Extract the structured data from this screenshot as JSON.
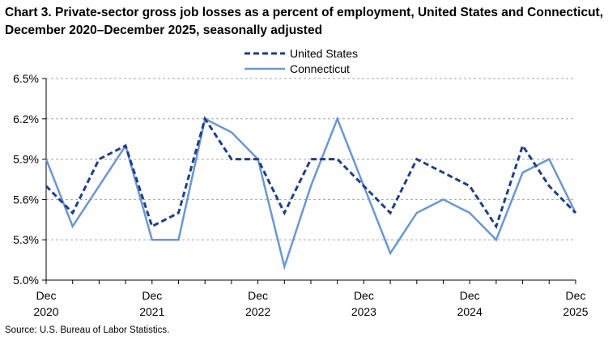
{
  "title": "Chart 3. Private-sector gross job losses as a percent of employment, United States and Connecticut, December 2020–December 2025, seasonally adjusted",
  "source": "Source: U.S. Bureau of Labor Statistics.",
  "chart_data": {
    "type": "line",
    "title": "Chart 3. Private-sector gross job losses as a percent of employment, United States and Connecticut, December 2020–December 2025, seasonally adjusted",
    "xlabel": "",
    "ylabel": "",
    "x": [
      "Dec 2020",
      "Mar 2021",
      "Jun 2021",
      "Sep 2021",
      "Dec 2021",
      "Mar 2022",
      "Jun 2022",
      "Sep 2022",
      "Dec 2022",
      "Mar 2023",
      "Jun 2023",
      "Sep 2023",
      "Dec 2023",
      "Mar 2024",
      "Jun 2024",
      "Sep 2024",
      "Dec 2024",
      "Mar 2025",
      "Jun 2025",
      "Sep 2025",
      "Dec 2025"
    ],
    "x_tick_labels": [
      {
        "index": 0,
        "line1": "Dec",
        "line2": "2020"
      },
      {
        "index": 4,
        "line1": "Dec",
        "line2": "2021"
      },
      {
        "index": 8,
        "line1": "Dec",
        "line2": "2022"
      },
      {
        "index": 12,
        "line1": "Dec",
        "line2": "2023"
      },
      {
        "index": 16,
        "line1": "Dec",
        "line2": "2024"
      },
      {
        "index": 20,
        "line1": "Dec",
        "line2": "2025"
      }
    ],
    "y_ticks": [
      "5.0%",
      "5.3%",
      "5.6%",
      "5.9%",
      "6.2%",
      "6.5%"
    ],
    "ylim": [
      5.0,
      6.5
    ],
    "grid": "horizontal dashed",
    "legend": "top-center",
    "series": [
      {
        "name": "United States",
        "color": "#1f3f86",
        "style": "dashed",
        "values": [
          5.7,
          5.5,
          5.9,
          6.0,
          5.4,
          5.5,
          6.2,
          5.9,
          5.9,
          5.5,
          5.9,
          5.9,
          5.7,
          5.5,
          5.9,
          5.8,
          5.7,
          5.4,
          6.0,
          5.7,
          5.5
        ]
      },
      {
        "name": "Connecticut",
        "color": "#6b97d0",
        "style": "solid",
        "values": [
          5.9,
          5.4,
          5.7,
          6.0,
          5.3,
          5.3,
          6.2,
          6.1,
          5.9,
          5.1,
          5.7,
          6.2,
          5.7,
          5.2,
          5.5,
          5.6,
          5.5,
          5.3,
          5.8,
          5.9,
          5.5
        ]
      }
    ]
  }
}
